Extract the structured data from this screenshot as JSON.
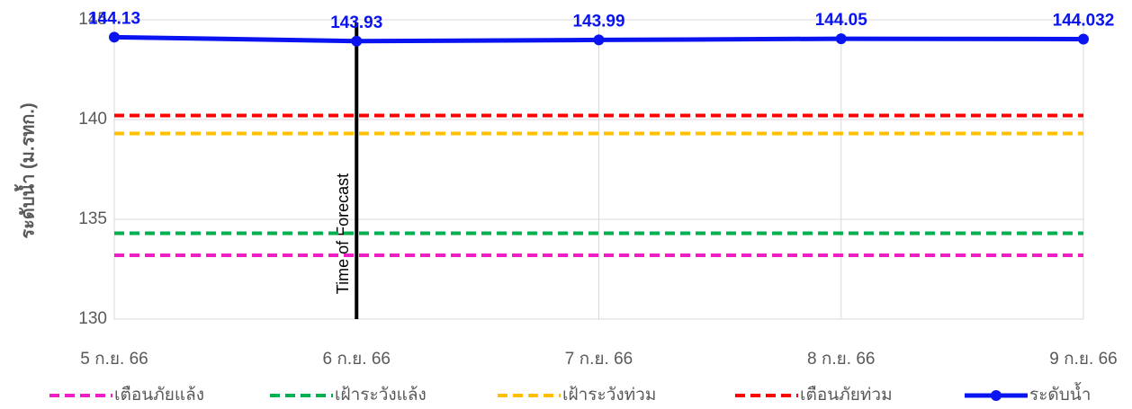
{
  "chart_data": {
    "type": "line",
    "ylabel": "ระดับน้ำ (ม.รทก.)",
    "categories": [
      "5 ก.ย. 66",
      "6 ก.ย. 66",
      "7 ก.ย. 66",
      "8 ก.ย. 66",
      "9 ก.ย. 66"
    ],
    "series": [
      {
        "name": "เตือนภัยแล้ง",
        "color": "#ee1fc3",
        "dashed": true,
        "values": [
          133.2,
          133.2,
          133.2,
          133.2,
          133.2
        ]
      },
      {
        "name": "เฝ้าระวังแล้ง",
        "color": "#00b050",
        "dashed": true,
        "values": [
          134.3,
          134.3,
          134.3,
          134.3,
          134.3
        ]
      },
      {
        "name": "เฝ้าระวังท่วม",
        "color": "#ffc000",
        "dashed": true,
        "values": [
          139.3,
          139.3,
          139.3,
          139.3,
          139.3
        ]
      },
      {
        "name": "เตือนภัยท่วม",
        "color": "#ff0000",
        "dashed": true,
        "values": [
          140.2,
          140.2,
          140.2,
          140.2,
          140.2
        ]
      },
      {
        "name": "ระดับน้ำ",
        "color": "#0a14f0",
        "dashed": false,
        "markers": true,
        "data_labels": true,
        "values": [
          144.13,
          143.93,
          143.99,
          144.05,
          144.032
        ]
      }
    ],
    "annotation": {
      "text": "Time of Forecast",
      "category": "6 ก.ย. 66"
    },
    "ylim": [
      130,
      145
    ],
    "yticks": [
      130,
      135,
      140,
      145
    ],
    "grid": true,
    "legend": "bottom"
  }
}
